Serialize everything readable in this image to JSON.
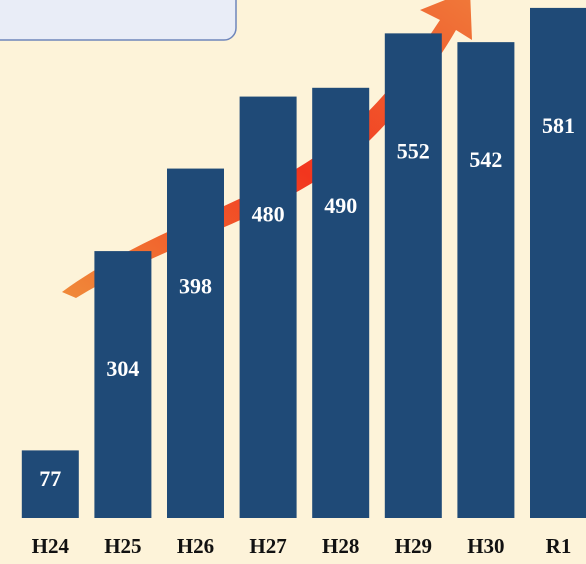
{
  "chart_data": {
    "type": "bar",
    "categories": [
      "H24",
      "H25",
      "H26",
      "H27",
      "H28",
      "H29",
      "H30",
      "R1"
    ],
    "values": [
      77,
      304,
      398,
      480,
      490,
      552,
      542,
      581
    ],
    "color": "#1f4a77",
    "ylim": [
      0,
      590
    ]
  }
}
